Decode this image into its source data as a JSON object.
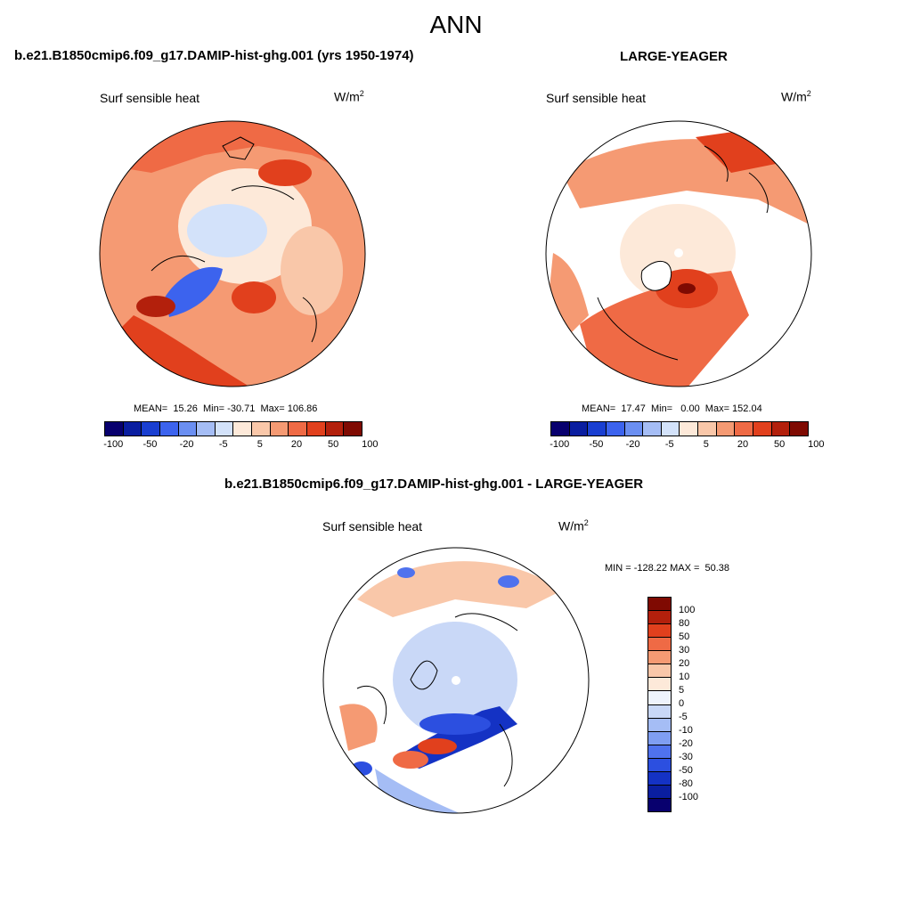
{
  "main_title": "ANN",
  "panels": [
    {
      "title": "b.e21.B1850cmip6.f09_g17.DAMIP-hist-ghg.001 (yrs 1950-1974)",
      "variable": "Surf sensible heat",
      "units_base": "W/m",
      "units_exp": "2",
      "stats": "MEAN=  15.26  Min= -30.71  Max= 106.86"
    },
    {
      "title": "LARGE-YEAGER",
      "variable": "Surf sensible heat",
      "units_base": "W/m",
      "units_exp": "2",
      "stats": "MEAN=  17.47  Min=   0.00  Max= 152.04"
    },
    {
      "title": "b.e21.B1850cmip6.f09_g17.DAMIP-hist-ghg.001 - LARGE-YEAGER",
      "variable": "Surf sensible heat",
      "units_base": "W/m",
      "units_exp": "2",
      "stats": "MIN = -128.22 MAX =  50.38"
    }
  ],
  "colorbar_main": {
    "colors": [
      "#08006e",
      "#0a1ea0",
      "#1a3fd1",
      "#3c63ee",
      "#6b8ff2",
      "#a5bdf5",
      "#d3e2fa",
      "#fde9d9",
      "#f9c7a9",
      "#f59a73",
      "#ef6a45",
      "#e1401d",
      "#b3200c",
      "#7f0a02"
    ],
    "labels": [
      "-100",
      "-50",
      "-20",
      "-5",
      "5",
      "20",
      "50",
      "100"
    ]
  },
  "colorbar_diff": {
    "colors": [
      "#7f0a02",
      "#b3200c",
      "#e1401d",
      "#ef6a45",
      "#f59a73",
      "#f9c7a9",
      "#fde9d9",
      "#eef3fc",
      "#c9d8f7",
      "#a5bdf5",
      "#7f9ef2",
      "#4f72ee",
      "#2c4fe0",
      "#1432c4",
      "#0a1ea0",
      "#08006e"
    ],
    "labels": [
      "100",
      "80",
      "50",
      "30",
      "20",
      "10",
      "5",
      "0",
      "-5",
      "-10",
      "-20",
      "-30",
      "-50",
      "-80",
      "-100"
    ]
  },
  "chart_data": {
    "type": "heatmap",
    "projection": "north polar stereographic",
    "season": "ANN",
    "variable": "Surf sensible heat",
    "units": "W/m2",
    "maps": [
      {
        "name": "b.e21.B1850cmip6.f09_g17.DAMIP-hist-ghg.001 (yrs 1950-1974)",
        "mean": 15.26,
        "min": -30.71,
        "max": 106.86
      },
      {
        "name": "LARGE-YEAGER",
        "mean": 17.47,
        "min": 0.0,
        "max": 152.04
      },
      {
        "name": "b.e21.B1850cmip6.f09_g17.DAMIP-hist-ghg.001 - LARGE-YEAGER",
        "min": -128.22,
        "max": 50.38
      }
    ],
    "colorbar_main_levels": [
      -100,
      -50,
      -20,
      -5,
      5,
      20,
      50,
      100
    ],
    "colorbar_diff_levels": [
      100,
      80,
      50,
      30,
      20,
      10,
      5,
      0,
      -5,
      -10,
      -20,
      -30,
      -50,
      -80,
      -100
    ]
  }
}
